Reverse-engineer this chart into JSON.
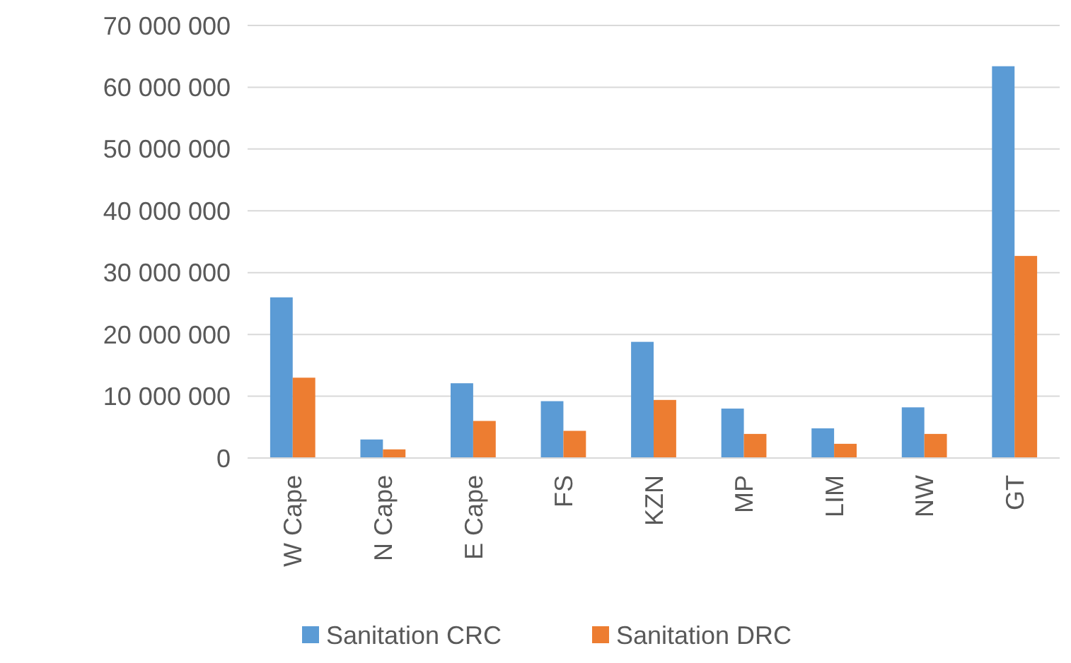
{
  "chart_data": {
    "type": "bar",
    "categories": [
      "W Cape",
      "N Cape",
      "E Cape",
      "FS",
      "KZN",
      "MP",
      "LIM",
      "NW",
      "GT"
    ],
    "series": [
      {
        "name": "Sanitation CRC",
        "color": "#5b9bd5",
        "values": [
          26000000,
          3000000,
          12100000,
          9200000,
          18800000,
          8000000,
          4800000,
          8200000,
          63400000
        ]
      },
      {
        "name": "Sanitation DRC",
        "color": "#ed7d31",
        "values": [
          13000000,
          1400000,
          6000000,
          4400000,
          9400000,
          3900000,
          2300000,
          3900000,
          32700000
        ]
      }
    ],
    "ylim": [
      0,
      70000000
    ],
    "yticks": [
      {
        "value": 0,
        "label": "0"
      },
      {
        "value": 10000000,
        "label": "10 000 000"
      },
      {
        "value": 20000000,
        "label": "20 000 000"
      },
      {
        "value": 30000000,
        "label": "30 000 000"
      },
      {
        "value": 40000000,
        "label": "40 000 000"
      },
      {
        "value": 50000000,
        "label": "50 000 000"
      },
      {
        "value": 60000000,
        "label": "60 000 000"
      },
      {
        "value": 70000000,
        "label": "70 000 000"
      }
    ],
    "grid": "y",
    "legend": "bottom"
  }
}
